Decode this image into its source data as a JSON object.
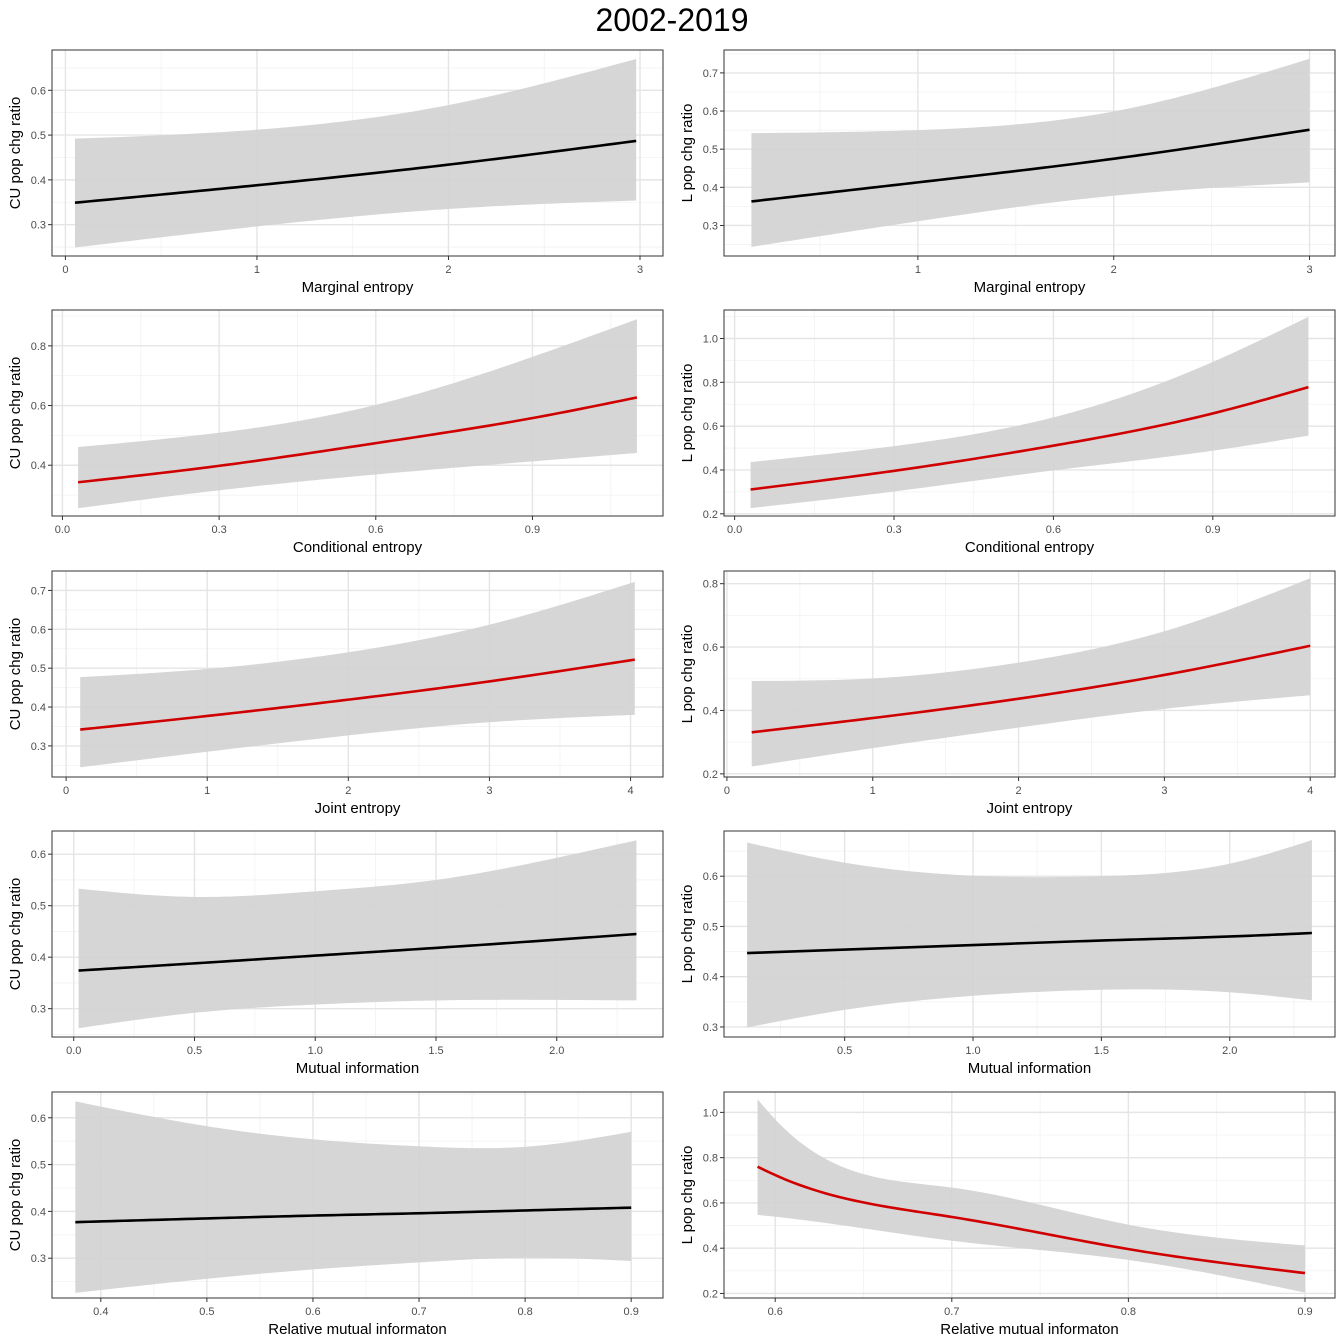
{
  "figure": {
    "title": "2002-2019"
  },
  "style": {
    "ribbon": "#d3d3d3",
    "sig_line": "#d00000",
    "nonsig_line": "#000000",
    "grid_major": "#e5e5e5",
    "grid_minor": "#f2f2f2",
    "border": "#333333"
  },
  "chart_data": [
    {
      "type": "line",
      "title": "",
      "xlabel": "Marginal entropy",
      "ylabel": "CU pop chg ratio",
      "xlim": [
        -0.07,
        3.12
      ],
      "ylim": [
        0.23,
        0.69
      ],
      "xticks": [
        "0",
        "1",
        "2",
        "3"
      ],
      "yticks": [
        "0.3",
        "0.4",
        "0.5",
        "0.6"
      ],
      "significant": false,
      "x": [
        0.05,
        1.0,
        2.0,
        2.98
      ],
      "y": [
        0.349,
        0.388,
        0.434,
        0.487
      ],
      "lower": [
        0.249,
        0.296,
        0.335,
        0.354
      ],
      "upper": [
        0.492,
        0.512,
        0.567,
        0.67
      ]
    },
    {
      "type": "line",
      "title": "",
      "xlabel": "Marginal entropy",
      "ylabel": "L pop chg ratio",
      "xlim": [
        0.01,
        3.13
      ],
      "ylim": [
        0.22,
        0.76
      ],
      "xticks": [
        "1",
        "2",
        "3"
      ],
      "yticks": [
        "0.3",
        "0.4",
        "0.5",
        "0.6",
        "0.7"
      ],
      "significant": false,
      "x": [
        0.15,
        1.0,
        2.0,
        3.0
      ],
      "y": [
        0.363,
        0.413,
        0.475,
        0.551
      ],
      "lower": [
        0.244,
        0.311,
        0.378,
        0.413
      ],
      "upper": [
        0.542,
        0.55,
        0.599,
        0.737
      ]
    },
    {
      "type": "line",
      "title": "",
      "xlabel": "Conditional entropy",
      "ylabel": "CU pop chg ratio",
      "xlim": [
        -0.02,
        1.15
      ],
      "ylim": [
        0.23,
        0.92
      ],
      "xticks": [
        "0.0",
        "0.3",
        "0.6",
        "0.9"
      ],
      "yticks": [
        "0.4",
        "0.6",
        "0.8"
      ],
      "significant": true,
      "x": [
        0.03,
        0.3,
        0.6,
        0.9,
        1.1
      ],
      "y": [
        0.343,
        0.398,
        0.474,
        0.558,
        0.627
      ],
      "lower": [
        0.256,
        0.316,
        0.369,
        0.413,
        0.441
      ],
      "upper": [
        0.461,
        0.509,
        0.602,
        0.763,
        0.889
      ]
    },
    {
      "type": "line",
      "title": "",
      "xlabel": "Conditional entropy",
      "ylabel": "L pop chg ratio",
      "xlim": [
        -0.02,
        1.13
      ],
      "ylim": [
        0.19,
        1.13
      ],
      "xticks": [
        "0.0",
        "0.3",
        "0.6",
        "0.9"
      ],
      "yticks": [
        "0.2",
        "0.4",
        "0.6",
        "0.8",
        "1.0"
      ],
      "significant": true,
      "x": [
        0.03,
        0.3,
        0.6,
        0.9,
        1.08
      ],
      "y": [
        0.311,
        0.396,
        0.511,
        0.658,
        0.778
      ],
      "lower": [
        0.226,
        0.302,
        0.398,
        0.488,
        0.557
      ],
      "upper": [
        0.436,
        0.509,
        0.64,
        0.893,
        1.099
      ]
    },
    {
      "type": "line",
      "title": "",
      "xlabel": "Joint entropy",
      "ylabel": "CU pop chg ratio",
      "xlim": [
        -0.1,
        4.23
      ],
      "ylim": [
        0.22,
        0.75
      ],
      "xticks": [
        "0",
        "1",
        "2",
        "3",
        "4"
      ],
      "yticks": [
        "0.3",
        "0.4",
        "0.5",
        "0.6",
        "0.7"
      ],
      "significant": true,
      "x": [
        0.1,
        1.0,
        2.0,
        3.0,
        4.03
      ],
      "y": [
        0.342,
        0.377,
        0.419,
        0.466,
        0.522
      ],
      "lower": [
        0.245,
        0.285,
        0.327,
        0.361,
        0.38
      ],
      "upper": [
        0.477,
        0.498,
        0.541,
        0.612,
        0.722
      ]
    },
    {
      "type": "line",
      "title": "",
      "xlabel": "Joint entropy",
      "ylabel": "L pop chg ratio",
      "xlim": [
        -0.02,
        4.17
      ],
      "ylim": [
        0.19,
        0.84
      ],
      "xticks": [
        "0",
        "1",
        "2",
        "3",
        "4"
      ],
      "yticks": [
        "0.2",
        "0.4",
        "0.6",
        "0.8"
      ],
      "significant": true,
      "x": [
        0.17,
        1.0,
        2.0,
        3.0,
        4.0
      ],
      "y": [
        0.331,
        0.376,
        0.437,
        0.512,
        0.604
      ],
      "lower": [
        0.223,
        0.281,
        0.346,
        0.405,
        0.448
      ],
      "upper": [
        0.493,
        0.501,
        0.551,
        0.65,
        0.817
      ]
    },
    {
      "type": "line",
      "title": "",
      "xlabel": "Mutual information",
      "ylabel": "CU pop chg ratio",
      "xlim": [
        -0.09,
        2.44
      ],
      "ylim": [
        0.245,
        0.645
      ],
      "xticks": [
        "0.0",
        "0.5",
        "1.0",
        "1.5",
        "2.0"
      ],
      "yticks": [
        "0.3",
        "0.4",
        "0.5",
        "0.6"
      ],
      "significant": false,
      "x": [
        0.02,
        0.5,
        1.0,
        1.5,
        2.0,
        2.33
      ],
      "y": [
        0.374,
        0.388,
        0.403,
        0.418,
        0.434,
        0.445
      ],
      "lower": [
        0.262,
        0.292,
        0.308,
        0.316,
        0.317,
        0.316
      ],
      "upper": [
        0.533,
        0.517,
        0.528,
        0.55,
        0.593,
        0.627
      ]
    },
    {
      "type": "line",
      "title": "",
      "xlabel": "Mutual information",
      "ylabel": "L pop chg ratio",
      "xlim": [
        0.03,
        2.41
      ],
      "ylim": [
        0.28,
        0.69
      ],
      "xticks": [
        "0.5",
        "1.0",
        "1.5",
        "2.0"
      ],
      "yticks": [
        "0.3",
        "0.4",
        "0.5",
        "0.6"
      ],
      "significant": false,
      "x": [
        0.12,
        0.5,
        1.0,
        1.5,
        2.0,
        2.32
      ],
      "y": [
        0.447,
        0.454,
        0.463,
        0.472,
        0.48,
        0.487
      ],
      "lower": [
        0.299,
        0.334,
        0.362,
        0.374,
        0.369,
        0.353
      ],
      "upper": [
        0.667,
        0.627,
        0.601,
        0.6,
        0.625,
        0.672
      ]
    },
    {
      "type": "line",
      "title": "",
      "xlabel": "Relative mutual informaton",
      "ylabel": "CU pop chg ratio",
      "xlim": [
        0.354,
        0.93
      ],
      "ylim": [
        0.215,
        0.655
      ],
      "xticks": [
        "0.4",
        "0.5",
        "0.6",
        "0.7",
        "0.8",
        "0.9"
      ],
      "yticks": [
        "0.3",
        "0.4",
        "0.5",
        "0.6"
      ],
      "significant": false,
      "x": [
        0.376,
        0.5,
        0.6,
        0.7,
        0.8,
        0.9
      ],
      "y": [
        0.377,
        0.385,
        0.391,
        0.396,
        0.402,
        0.408
      ],
      "lower": [
        0.226,
        0.256,
        0.276,
        0.291,
        0.301,
        0.294
      ],
      "upper": [
        0.635,
        0.582,
        0.554,
        0.539,
        0.538,
        0.57
      ]
    },
    {
      "type": "line",
      "title": "",
      "xlabel": "Relative mutual informaton",
      "ylabel": "L pop chg ratio",
      "xlim": [
        0.571,
        0.917
      ],
      "ylim": [
        0.18,
        1.09
      ],
      "xticks": [
        "0.6",
        "0.7",
        "0.8",
        "0.9"
      ],
      "yticks": [
        "0.2",
        "0.4",
        "0.6",
        "0.8",
        "1.0"
      ],
      "significant": true,
      "x": [
        0.59,
        0.6,
        0.7,
        0.8,
        0.9
      ],
      "y": [
        0.76,
        0.723,
        0.538,
        0.396,
        0.29
      ],
      "lower": [
        0.547,
        0.539,
        0.433,
        0.348,
        0.204
      ],
      "upper": [
        1.058,
        0.969,
        0.668,
        0.504,
        0.412
      ]
    }
  ]
}
